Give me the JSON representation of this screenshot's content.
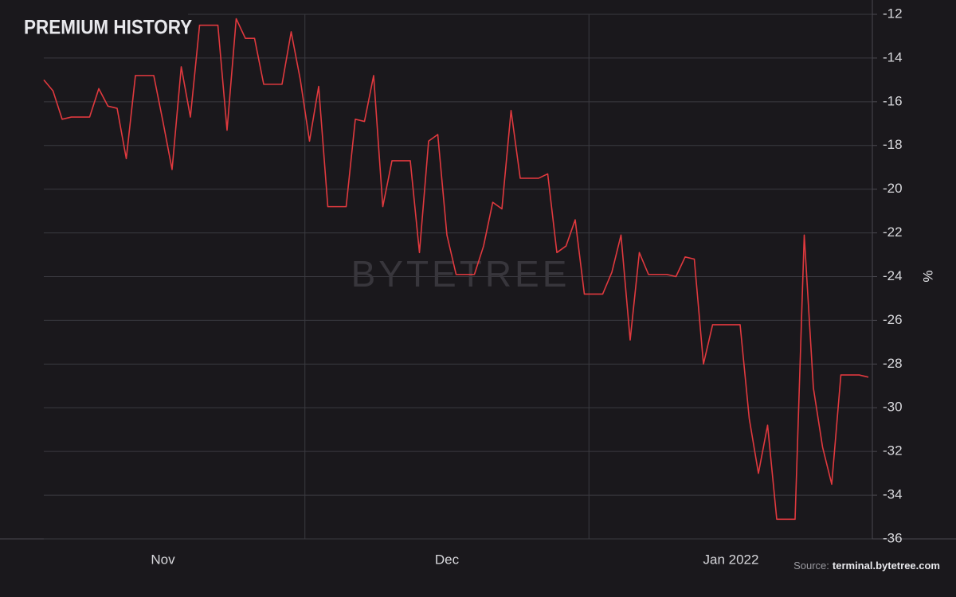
{
  "chart_data": {
    "type": "line",
    "title": "PREMIUM HISTORY",
    "y_label": "%",
    "watermark": "BYTETREE",
    "source_label": "Source:",
    "source": "terminal.bytetree.com",
    "categories": [
      null,
      null,
      null,
      null,
      null,
      null,
      null,
      null,
      null,
      null,
      null,
      null,
      null,
      "Nov",
      null,
      null,
      null,
      null,
      null,
      null,
      null,
      null,
      null,
      null,
      null,
      null,
      null,
      null,
      null,
      null,
      null,
      null,
      null,
      null,
      null,
      null,
      null,
      null,
      null,
      null,
      null,
      null,
      null,
      null,
      "Dec",
      null,
      null,
      null,
      null,
      null,
      null,
      null,
      null,
      null,
      null,
      null,
      null,
      null,
      null,
      null,
      null,
      null,
      null,
      null,
      null,
      null,
      null,
      null,
      null,
      null,
      null,
      null,
      null,
      null,
      null,
      "Jan 2022",
      null,
      null,
      null,
      null,
      null,
      null,
      null,
      null,
      null,
      null,
      null,
      null,
      null,
      null,
      null
    ],
    "series": [
      {
        "name": "Premium",
        "color": "#e0393e",
        "values": [
          -15.0,
          -15.5,
          -16.8,
          -16.7,
          -16.7,
          -16.7,
          -15.4,
          -16.2,
          -16.3,
          -18.6,
          -14.8,
          -14.8,
          -14.8,
          -16.9,
          -19.1,
          -14.4,
          -16.7,
          -12.5,
          -12.5,
          -12.5,
          -17.3,
          -12.2,
          -13.1,
          -13.1,
          -15.2,
          -15.2,
          -15.2,
          -12.8,
          -15.0,
          -17.8,
          -15.3,
          -20.8,
          -20.8,
          -20.8,
          -16.8,
          -16.9,
          -14.8,
          -20.8,
          -18.7,
          -18.7,
          -18.7,
          -22.9,
          -17.8,
          -17.5,
          -22.1,
          -23.9,
          -23.9,
          -23.9,
          -22.6,
          -20.6,
          -20.9,
          -16.4,
          -19.5,
          -19.5,
          -19.5,
          -19.3,
          -22.9,
          -22.6,
          -21.4,
          -24.8,
          -24.8,
          -24.8,
          -23.8,
          -22.1,
          -26.9,
          -22.9,
          -23.9,
          -23.9,
          -23.9,
          -24.0,
          -23.1,
          -23.2,
          -28.0,
          -26.2,
          -26.2,
          -26.2,
          -26.2,
          -30.5,
          -33.0,
          -30.8,
          -35.1,
          -35.1,
          -35.1,
          -22.1,
          -29.1,
          -31.8,
          -33.5,
          -28.5,
          -28.5,
          -28.5,
          -28.6
        ]
      }
    ],
    "ylim": [
      -36,
      -12
    ],
    "yticks": [
      -36,
      -34,
      -32,
      -30,
      -28,
      -26,
      -24,
      -22,
      -20,
      -18,
      -16,
      -14,
      -12
    ],
    "grid": true
  }
}
